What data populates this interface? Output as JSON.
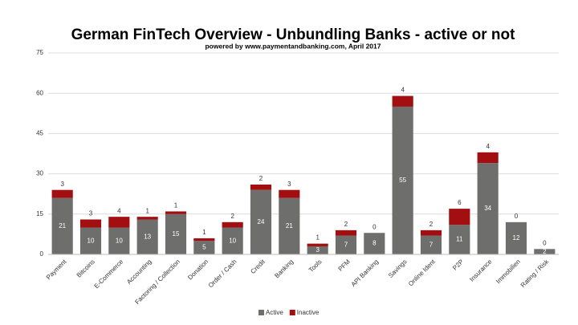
{
  "chart_data": {
    "type": "stacked_bar",
    "title": "German FinTech Overview - Unbundling Banks - active or not",
    "subtitle": "powered by www.paymentandbanking.com, April 2017",
    "categories": [
      "Payment",
      "Bitcoins",
      "E-Commerce",
      "Accounting",
      "Factoring / Collection",
      "Donation",
      "Order / Cash",
      "Credit",
      "Banking",
      "Tools",
      "PFM",
      "API Banking",
      "Savings",
      "Online Ident",
      "P2P",
      "Insurance",
      "Immobilien",
      "Rating / Risk"
    ],
    "series": [
      {
        "name": "Active",
        "color": "#6e6f6d",
        "values": [
          21,
          10,
          10,
          13,
          15,
          5,
          10,
          24,
          21,
          3,
          7,
          8,
          55,
          7,
          11,
          34,
          12,
          2
        ]
      },
      {
        "name": "Inactive",
        "color": "#a30f10",
        "values": [
          3,
          3,
          4,
          1,
          1,
          1,
          2,
          2,
          3,
          1,
          2,
          0,
          4,
          2,
          6,
          4,
          0,
          0
        ]
      }
    ],
    "ylim": [
      0,
      75
    ],
    "yticks": [
      0,
      15,
      30,
      45,
      60,
      75
    ],
    "grid": true,
    "legend": "bottom"
  }
}
